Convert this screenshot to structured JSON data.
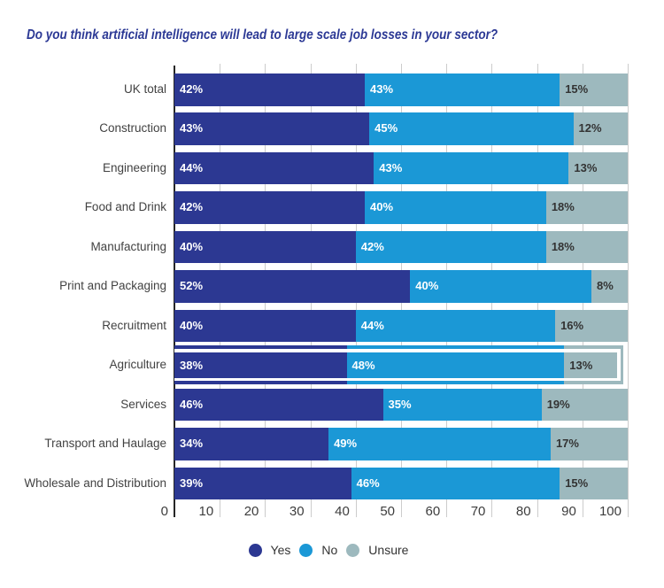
{
  "chart_data": {
    "type": "bar",
    "orientation": "horizontal-stacked",
    "title": "Do you think artificial intelligence will lead to large scale job losses in your sector?",
    "categories": [
      "UK total",
      "Construction",
      "Engineering",
      "Food and Drink",
      "Manufacturing",
      "Print and Packaging",
      "Recruitment",
      "Agriculture",
      "Services",
      "Transport and Haulage",
      "Wholesale and Distribution"
    ],
    "series": [
      {
        "name": "Yes",
        "color": "#2c3892",
        "label_color": "#ffffff",
        "values": [
          42,
          43,
          44,
          42,
          40,
          52,
          40,
          38,
          46,
          34,
          39
        ]
      },
      {
        "name": "No",
        "color": "#1b98d6",
        "label_color": "#ffffff",
        "values": [
          43,
          45,
          43,
          40,
          42,
          40,
          44,
          48,
          35,
          49,
          46
        ]
      },
      {
        "name": "Unsure",
        "color": "#9db9be",
        "label_color": "#333333",
        "values": [
          15,
          12,
          13,
          18,
          18,
          8,
          16,
          13,
          19,
          17,
          15
        ]
      }
    ],
    "value_suffix": "%",
    "xticks": [
      0,
      10,
      20,
      30,
      40,
      50,
      60,
      70,
      80,
      90,
      100
    ],
    "xlim": [
      0,
      100
    ],
    "grid": true,
    "legend_position": "bottom",
    "highlighted_category": "Agriculture"
  }
}
